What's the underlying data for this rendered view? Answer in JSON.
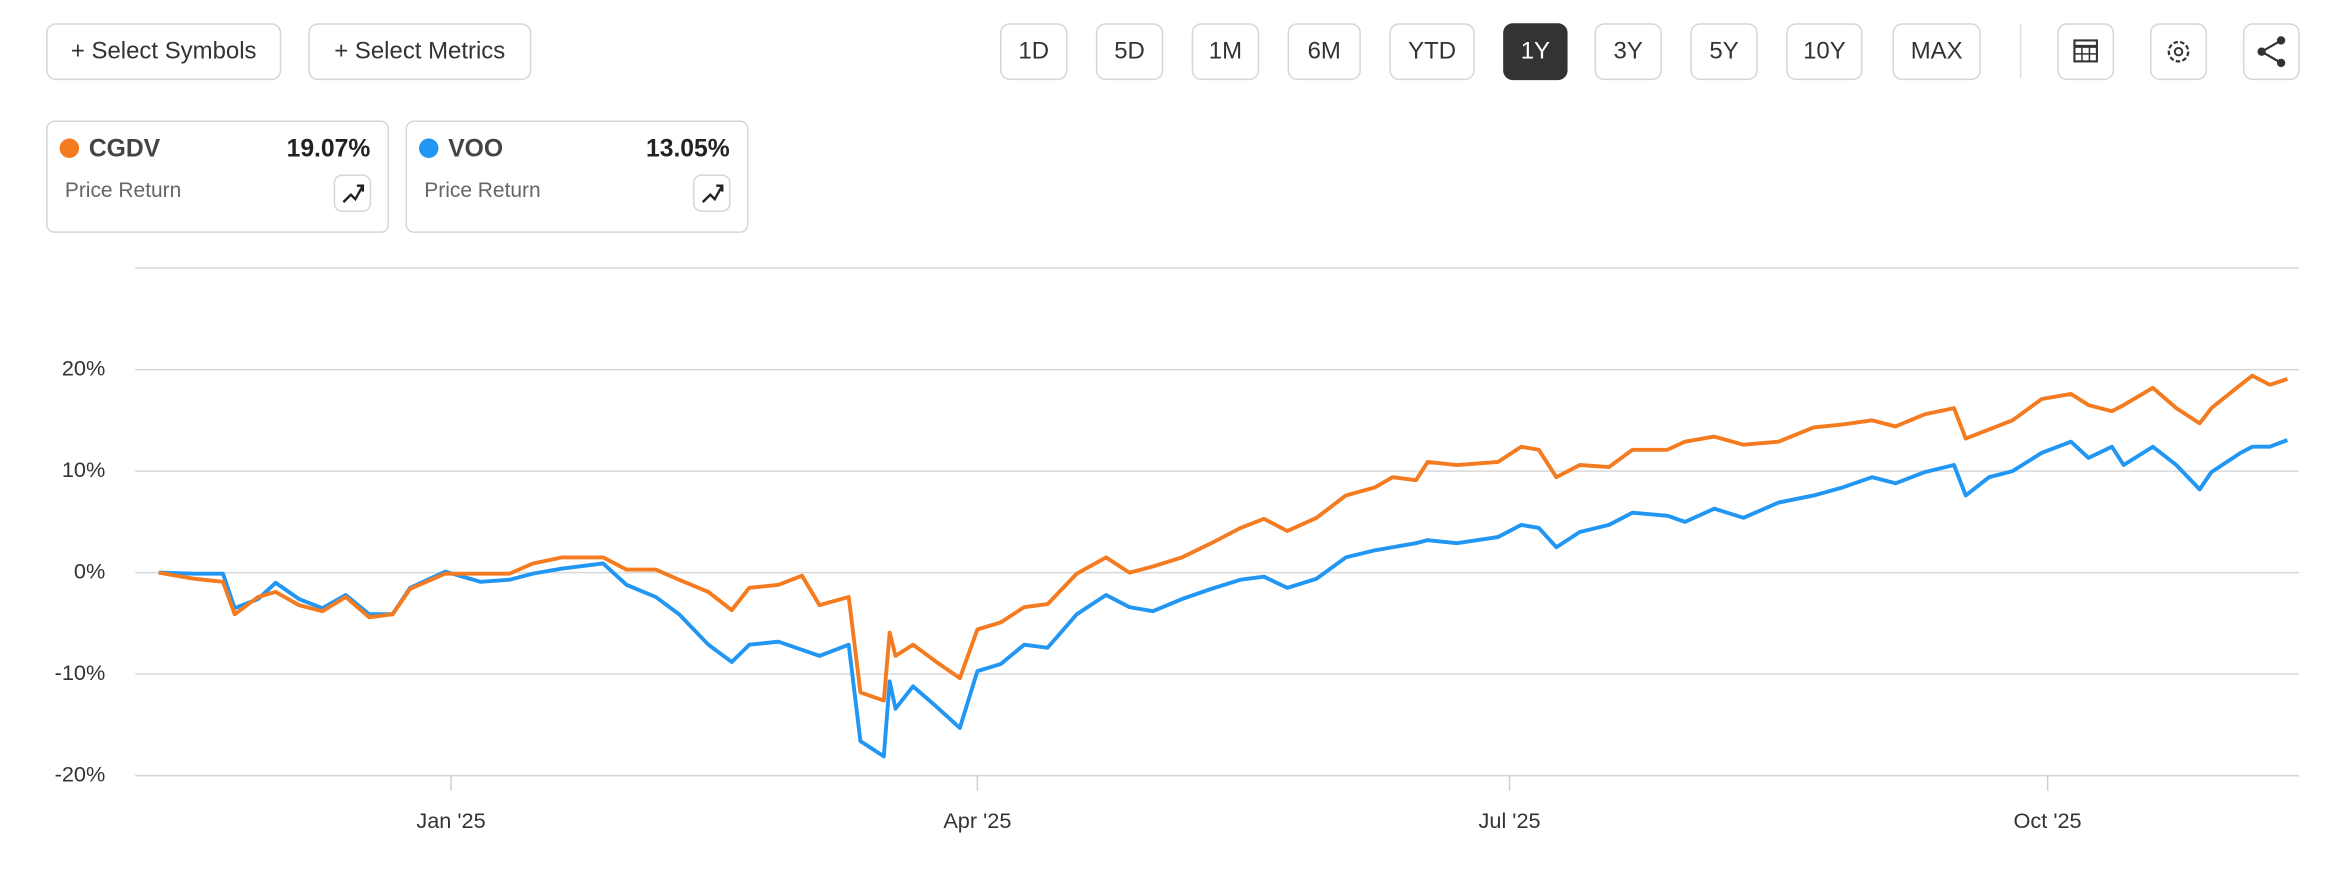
{
  "toolbar": {
    "buttons": [
      "+ Select Symbols",
      "+ Select Metrics"
    ],
    "ranges": [
      "1D",
      "5D",
      "1M",
      "6M",
      "YTD",
      "1Y",
      "3Y",
      "5Y",
      "10Y",
      "MAX"
    ],
    "active_range": "1Y"
  },
  "chart_data": {
    "type": "line",
    "x": [
      -50,
      -44,
      -39,
      -37,
      -33,
      -30,
      -26,
      -22,
      -18,
      -14,
      -10,
      -7,
      -1,
      5,
      10,
      14,
      19,
      26,
      30,
      35,
      39,
      44,
      48,
      51,
      56,
      60,
      63,
      68,
      70,
      74,
      75,
      76,
      79,
      83,
      87,
      90,
      94,
      98,
      102,
      107,
      112,
      116,
      120,
      125,
      130,
      135,
      139,
      143,
      148,
      153,
      158,
      161,
      165,
      167,
      172,
      179,
      183,
      186,
      189,
      193,
      198,
      202,
      208,
      211,
      216,
      221,
      227,
      233,
      238,
      243,
      247,
      252,
      257,
      259,
      263,
      267,
      272,
      277,
      280,
      284,
      286,
      291,
      295,
      299,
      301,
      306,
      308,
      311,
      314
    ],
    "series": [
      {
        "name": "CGDV",
        "color": "#f47b20",
        "metric": "Price Return",
        "return_label": "19.07%",
        "values": [
          0,
          -0.6,
          -0.9,
          -4.1,
          -2.4,
          -1.9,
          -3.2,
          -3.8,
          -2.4,
          -4.4,
          -4.1,
          -1.6,
          -0.1,
          -0.1,
          -0.1,
          0.9,
          1.5,
          1.5,
          0.3,
          0.3,
          -0.7,
          -1.9,
          -3.7,
          -1.5,
          -1.2,
          -0.3,
          -3.2,
          -2.4,
          -11.8,
          -12.6,
          -5.9,
          -8.2,
          -7.1,
          -8.8,
          -10.4,
          -5.6,
          -4.9,
          -3.4,
          -3.1,
          -0.1,
          1.5,
          0,
          0.6,
          1.5,
          2.9,
          4.4,
          5.3,
          4.1,
          5.4,
          7.6,
          8.4,
          9.4,
          9.1,
          10.9,
          10.6,
          10.9,
          12.4,
          12.1,
          9.4,
          10.6,
          10.4,
          12.1,
          12.1,
          12.9,
          13.4,
          12.6,
          12.9,
          14.3,
          14.6,
          15.0,
          14.4,
          15.6,
          16.2,
          13.2,
          14.1,
          15.0,
          17.1,
          17.6,
          16.5,
          15.9,
          16.5,
          18.2,
          16.2,
          14.7,
          16.2,
          18.5,
          19.4,
          18.5,
          19.07
        ]
      },
      {
        "name": "VOO",
        "color": "#2196f3",
        "metric": "Price Return",
        "return_label": "13.05%",
        "values": [
          0,
          -0.1,
          -0.1,
          -3.5,
          -2.6,
          -1.0,
          -2.6,
          -3.5,
          -2.2,
          -4.1,
          -4.1,
          -1.5,
          0.1,
          -0.9,
          -0.7,
          -0.1,
          0.4,
          0.9,
          -1.2,
          -2.4,
          -4.1,
          -7.1,
          -8.8,
          -7.1,
          -6.8,
          -7.6,
          -8.2,
          -7.1,
          -16.6,
          -18.1,
          -10.7,
          -13.4,
          -11.2,
          -13.2,
          -15.3,
          -9.7,
          -9.0,
          -7.1,
          -7.4,
          -4.1,
          -2.2,
          -3.4,
          -3.8,
          -2.6,
          -1.6,
          -0.7,
          -0.4,
          -1.5,
          -0.6,
          1.5,
          2.2,
          2.5,
          2.9,
          3.2,
          2.9,
          3.5,
          4.7,
          4.4,
          2.5,
          4.0,
          4.7,
          5.9,
          5.6,
          5.0,
          6.3,
          5.4,
          6.9,
          7.6,
          8.4,
          9.4,
          8.8,
          9.9,
          10.6,
          7.6,
          9.4,
          10.0,
          11.8,
          12.9,
          11.3,
          12.4,
          10.6,
          12.4,
          10.6,
          8.2,
          9.9,
          11.8,
          12.4,
          12.4,
          13.05
        ]
      }
    ],
    "xlim": [
      -54,
      316
    ],
    "xticks": [
      {
        "value": 0,
        "label": "Jan '25"
      },
      {
        "value": 90,
        "label": "Apr '25"
      },
      {
        "value": 181,
        "label": "Jul '25"
      },
      {
        "value": 273,
        "label": "Oct '25"
      }
    ],
    "ylim": [
      -20,
      30
    ],
    "yticks": [
      {
        "value": -20,
        "label": "-20%"
      },
      {
        "value": -10,
        "label": "-10%"
      },
      {
        "value": 0,
        "label": "0%"
      },
      {
        "value": 10,
        "label": "10%"
      },
      {
        "value": 20,
        "label": "20%"
      }
    ],
    "grid": true
  }
}
